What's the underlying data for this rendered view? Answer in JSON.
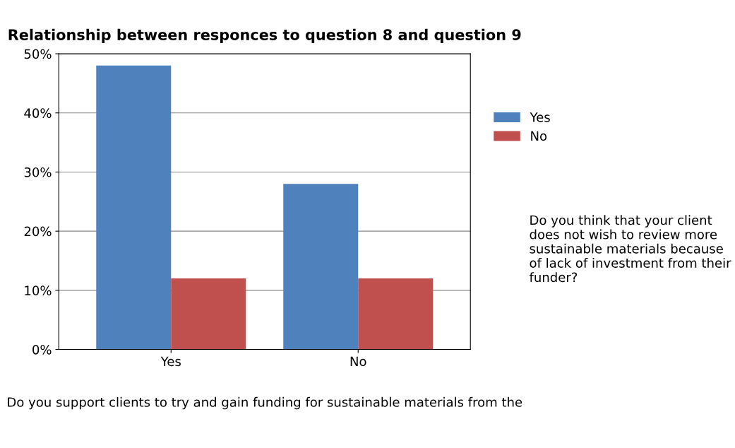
{
  "chart_data": {
    "type": "bar",
    "title": "Relationship between responces to question 8 and question 9",
    "categories": [
      "Yes",
      "No"
    ],
    "xlabel": "Do you support clients to try and gain funding for sustainable materials from the",
    "legend_title": "Do you think that your client does not wish to review more sustainable materials because of lack of investment from their funder?",
    "series": [
      {
        "name": "Yes",
        "color": "#4f81bd",
        "values": [
          48,
          28
        ]
      },
      {
        "name": "No",
        "color": "#c0504d",
        "values": [
          12,
          12
        ]
      }
    ],
    "ylim": [
      0,
      50
    ],
    "yticks": [
      {
        "value": 0,
        "label": "0%"
      },
      {
        "value": 10,
        "label": "10%"
      },
      {
        "value": 20,
        "label": "20%"
      },
      {
        "value": 30,
        "label": "30%"
      },
      {
        "value": 40,
        "label": "40%"
      },
      {
        "value": 50,
        "label": "50%"
      }
    ],
    "grid": "y",
    "legend": "right"
  }
}
